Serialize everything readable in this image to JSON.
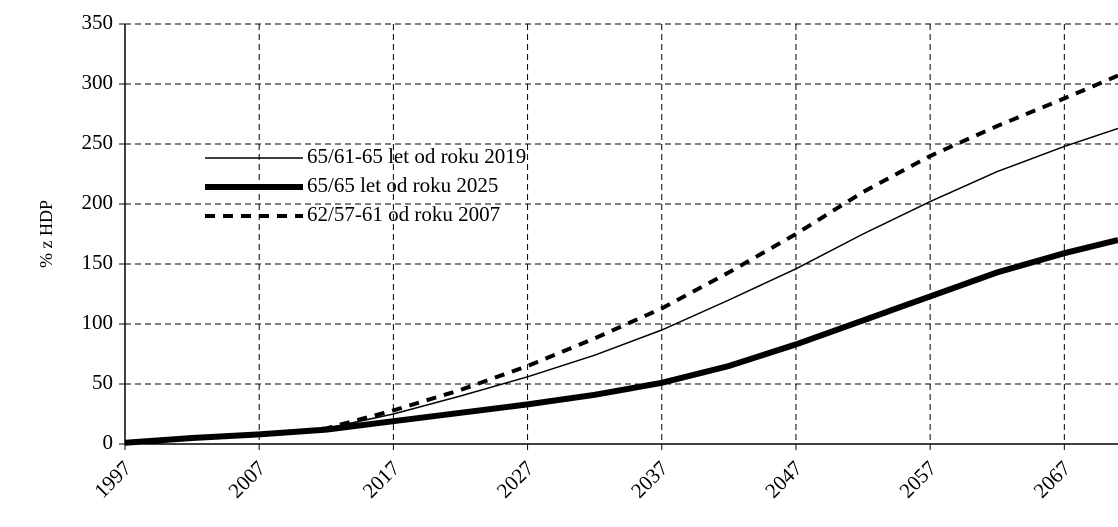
{
  "chart_data": {
    "type": "line",
    "y_label": "% z HDP",
    "xlim": [
      1997,
      2071
    ],
    "xticks": [
      1997,
      2007,
      2017,
      2027,
      2037,
      2047,
      2057,
      2067
    ],
    "ylim": [
      0,
      350
    ],
    "yticks": [
      0,
      50,
      100,
      150,
      200,
      250,
      300,
      350
    ],
    "grid": true,
    "legend": "upper left",
    "x": [
      1997,
      2002,
      2007,
      2012,
      2017,
      2022,
      2027,
      2032,
      2037,
      2042,
      2047,
      2052,
      2057,
      2062,
      2067,
      2071
    ],
    "series": [
      {
        "name": "65/61-65 let od roku 2019",
        "color": "#000000",
        "width": 1.5,
        "dash": "none",
        "values": [
          1,
          5,
          8,
          13,
          25,
          40,
          56,
          74,
          95,
          120,
          146,
          175,
          202,
          227,
          248,
          263
        ]
      },
      {
        "name": "65/65 let od roku 2025",
        "color": "#000000",
        "width": 6,
        "dash": "none",
        "values": [
          1,
          5,
          8,
          12,
          19,
          26,
          33,
          41,
          51,
          65,
          83,
          103,
          123,
          143,
          159,
          170
        ]
      },
      {
        "name": "62/57-61 od roku 2007",
        "color": "#000000",
        "width": 4,
        "dash": "10 8",
        "values": [
          1,
          5,
          8,
          13,
          28,
          45,
          65,
          88,
          113,
          143,
          175,
          210,
          240,
          265,
          288,
          307
        ]
      }
    ]
  }
}
